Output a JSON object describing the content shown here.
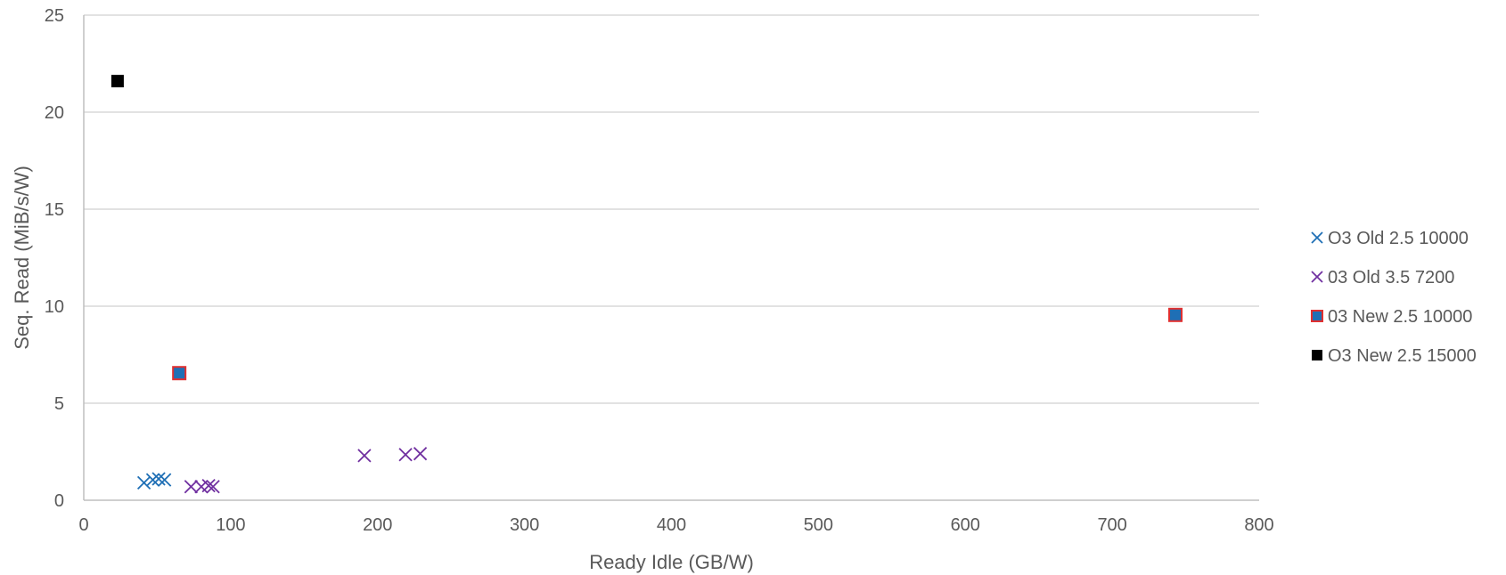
{
  "chart_data": {
    "type": "scatter",
    "title": "",
    "xlabel": "Ready Idle (GB/W)",
    "ylabel": "Seq. Read (MiB/s/W)",
    "xlim": [
      0,
      800
    ],
    "ylim": [
      0,
      25
    ],
    "x_ticks": [
      0,
      100,
      200,
      300,
      400,
      500,
      600,
      700,
      800
    ],
    "y_ticks": [
      0,
      5,
      10,
      15,
      20,
      25
    ],
    "grid": "horizontal",
    "legend_position": "right",
    "series": [
      {
        "name": "O3 Old 2.5 10000",
        "marker": "x",
        "color": "#1F6FB5",
        "points": [
          [
            41,
            0.9
          ],
          [
            47,
            1.05
          ],
          [
            51,
            1.1
          ],
          [
            55,
            1.05
          ]
        ]
      },
      {
        "name": "03 Old 3.5 7200",
        "marker": "x",
        "color": "#7030A0",
        "points": [
          [
            73,
            0.7
          ],
          [
            80,
            0.7
          ],
          [
            85,
            0.75
          ],
          [
            88,
            0.7
          ],
          [
            191,
            2.3
          ],
          [
            219,
            2.35
          ],
          [
            229,
            2.4
          ]
        ]
      },
      {
        "name": "03 New 2.5 10000",
        "marker": "square-outlined",
        "color": "#1F6FB5",
        "edge_color": "#E03030",
        "points": [
          [
            65,
            6.55
          ],
          [
            743,
            9.55
          ]
        ]
      },
      {
        "name": "O3 New 2.5 15000",
        "marker": "square",
        "color": "#000000",
        "points": [
          [
            23,
            21.6
          ]
        ]
      }
    ]
  }
}
